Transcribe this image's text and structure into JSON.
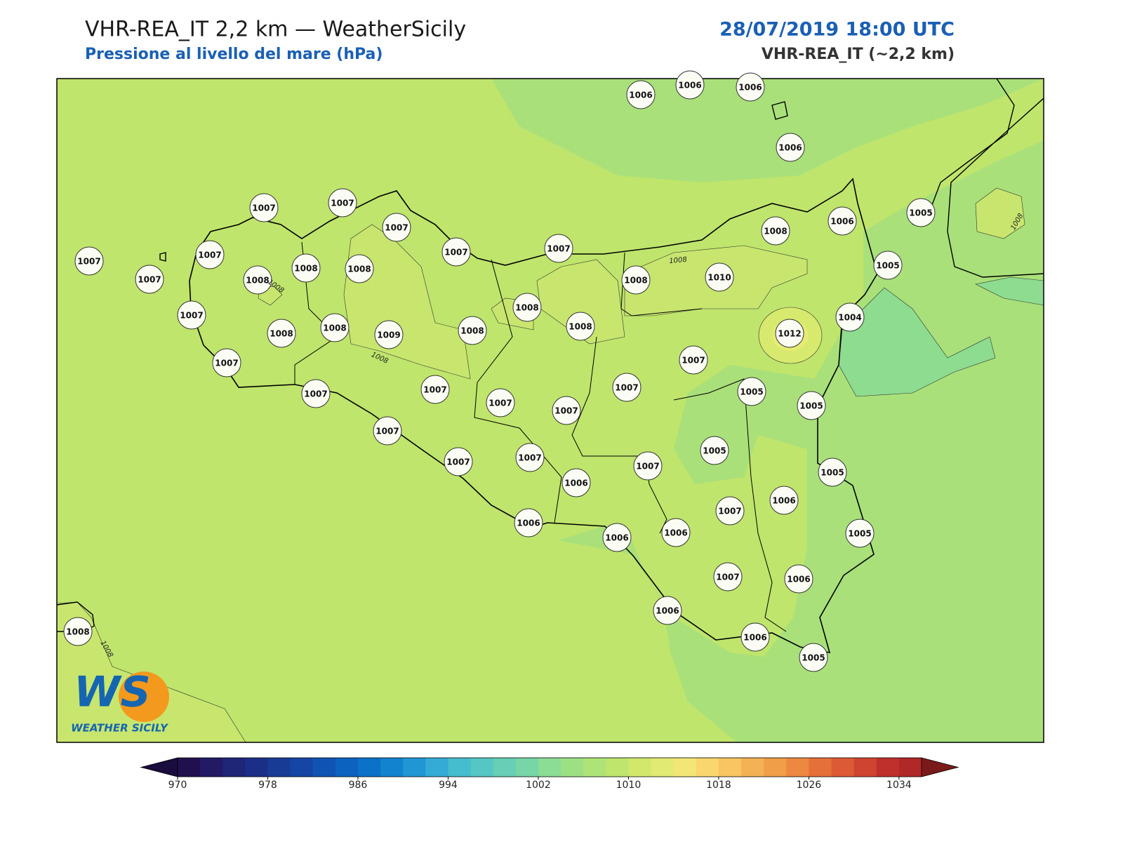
{
  "header": {
    "title": "VHR-REA_IT 2,2 km — WeatherSicily",
    "subtitle": "Pressione al livello del mare (hPa)",
    "datetime": "28/07/2019 18:00 UTC",
    "model": "VHR-REA_IT (~2,2 km)"
  },
  "map": {
    "stations": [
      1006,
      1006,
      1006,
      1006,
      1007,
      1007,
      1007,
      1007,
      1007,
      1008,
      1006,
      1005,
      1007,
      1007,
      1007,
      1008,
      1008,
      1008,
      1008,
      1010,
      1005,
      1008,
      1007,
      1008,
      1008,
      1009,
      1008,
      1008,
      1012,
      1004,
      1007,
      1007,
      1007,
      1007,
      1007,
      1005,
      1005,
      1007,
      1007,
      1007,
      1005,
      1007,
      1007,
      1007,
      1005,
      1006,
      1006,
      1007,
      1006,
      1006,
      1006,
      1005,
      1007,
      1006,
      1006,
      1006,
      1005,
      1008
    ],
    "contour_labels": [
      1008,
      1008,
      1008,
      1008,
      1008
    ]
  },
  "colorbar": {
    "lim": [
      970,
      1036
    ],
    "ticks": [
      970,
      978,
      986,
      994,
      1002,
      1010,
      1018,
      1026,
      1034
    ],
    "colors": [
      "#21104f",
      "#231a66",
      "#1f2577",
      "#1b2f88",
      "#183b96",
      "#1546a6",
      "#1153b3",
      "#0c62be",
      "#0a72c8",
      "#1283cf",
      "#2196d4",
      "#34abd6",
      "#46bccf",
      "#55c6c3",
      "#66cfb5",
      "#77d6a6",
      "#8bdc95",
      "#9de084",
      "#aee477",
      "#bfe56c",
      "#d1e86b",
      "#e1ea71",
      "#f3e677",
      "#f9d76c",
      "#f8c560",
      "#f4b254",
      "#f19e48",
      "#ec8840",
      "#e5703a",
      "#dc5a35",
      "#cf4430",
      "#bf302d",
      "#b02828"
    ],
    "extend_colors": [
      "#1a0c3e",
      "#7a1a1a"
    ]
  },
  "logo": {
    "mark": "WS",
    "text": "WEATHER SICILY"
  }
}
